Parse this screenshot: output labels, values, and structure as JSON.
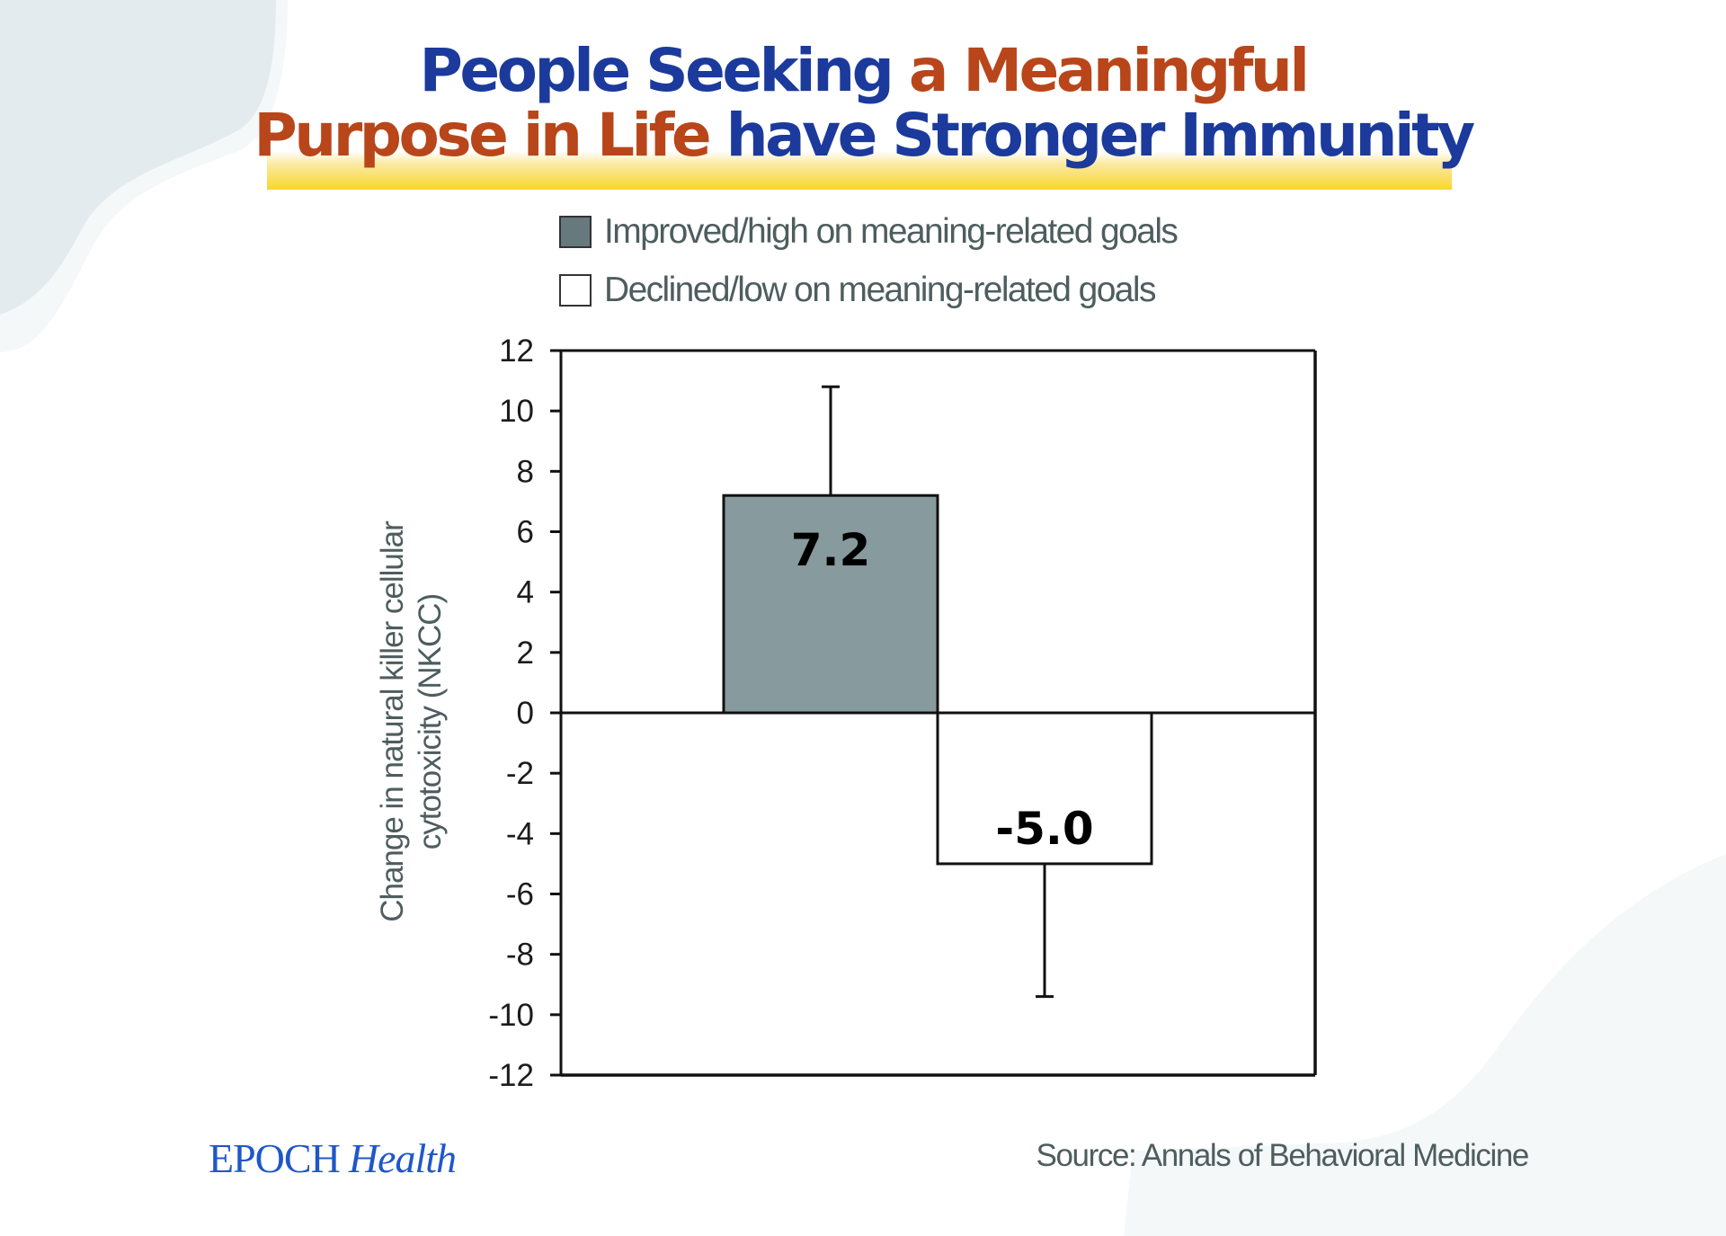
{
  "title": {
    "line1": [
      {
        "text": "People Seeking ",
        "color": "blue"
      },
      {
        "text": "a Meaningful",
        "color": "rust"
      }
    ],
    "line2": [
      {
        "text": "Purpose in Life ",
        "color": "rust"
      },
      {
        "text": "have Stronger Immunity",
        "color": "blue"
      }
    ]
  },
  "colors": {
    "title_blue": "#1b3a9c",
    "title_rust": "#b8461a",
    "highlight_yellow": "#f9d62e",
    "bar_improved": "#879a9e",
    "bar_declined": "#ffffff",
    "legend_swatch_improved": "#66797d",
    "text_gray": "#4e5d5f",
    "logo_blue": "#1f57c9"
  },
  "legend": [
    {
      "label": "Improved/high on meaning-related goals",
      "swatch": "#66797d"
    },
    {
      "label": "Declined/low on meaning-related goals",
      "swatch": "#ffffff"
    }
  ],
  "chart_data": {
    "type": "bar",
    "title": "People Seeking a Meaningful Purpose in Life have Stronger Immunity",
    "xlabel": "",
    "ylabel": "Change in natural killer cellular cytotoxicity (NKCC)",
    "ylabel_lines": [
      "Change in natural killer cellular",
      "cytotoxicity (NKCC)"
    ],
    "categories": [
      "Improved/high on meaning-related goals",
      "Declined/low on meaning-related goals"
    ],
    "values": [
      7.2,
      -5.0
    ],
    "value_labels": [
      "7.2",
      "-5.0"
    ],
    "error_bars": [
      10.8,
      -9.4
    ],
    "colors": [
      "#879a9e",
      "#ffffff"
    ],
    "ylim": [
      -12,
      12
    ],
    "yticks": [
      12,
      10,
      8,
      6,
      4,
      2,
      0,
      -2,
      -4,
      -6,
      -8,
      -10,
      -12
    ],
    "grid": false,
    "legend_position": "top"
  },
  "footer": {
    "logo_primary": "EPOCH",
    "logo_secondary": "Health",
    "source": "Source: Annals of Behavioral Medicine"
  }
}
